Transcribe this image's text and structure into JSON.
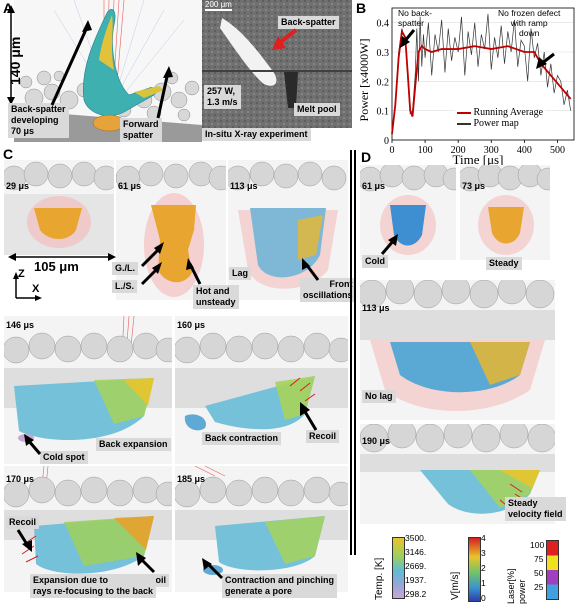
{
  "panel_a": {
    "label": "A",
    "scale_label": "140 μm",
    "xray_scale": "200 μm",
    "back_spatter": "Back-spatter",
    "params": "257 W,\n1.3 m/s",
    "melt_pool": "Melt pool",
    "back_spatter_developing": "Back-spatter\ndeveloping\n70 μs",
    "forward_spatter": "Forward\nspatter",
    "xray_caption": "In-situ X-ray experiment"
  },
  "panel_b": {
    "label": "B",
    "ylabel": "Power [x4000W]",
    "xlabel": "Time [μs]",
    "annotation_left": "No back-\nspatter",
    "annotation_right": "No frozen defect\nwith ramp\ndown",
    "legend_running": "Running Average",
    "legend_power": "Power map"
  },
  "panel_c": {
    "label": "C",
    "times": [
      "29 μs",
      "61 μs",
      "113 μs",
      "146 μs",
      "160 μs",
      "170 μs",
      "185 μs"
    ],
    "width_label": "105 μm",
    "gl": "G./L.",
    "ls": "L./S.",
    "hot_unsteady": "Hot and\nunsteady",
    "lag": "Lag",
    "front_osc": "Front\noscillations",
    "cold_spot": "Cold spot",
    "back_expansion": "Back expansion",
    "back_contraction": "Back contraction",
    "recoil": "Recoil",
    "expansion_text": "Expansion due to\nrays re-focusing to the back",
    "contraction_text": "Contraction and pinching\ngenerate a pore",
    "axis_z": "Z",
    "axis_x": "X"
  },
  "panel_d": {
    "label": "D",
    "times": [
      "61 μs",
      "73 μs",
      "113 μs",
      "190 μs"
    ],
    "cold": "Cold",
    "steady": "Steady",
    "no_lag": "No lag",
    "steady_field": "Steady\nvelocity field"
  },
  "colorbars": {
    "temp": {
      "title": "Temp. [K]",
      "ticks": [
        "3500.",
        "3146.",
        "2669.",
        "1937.",
        "298.2"
      ]
    },
    "vel": {
      "title": "V[m/s]",
      "ticks": [
        "4",
        "3",
        "2",
        "1",
        "0"
      ]
    },
    "laser": {
      "title": "Laser[%]\npower",
      "ticks": [
        "100",
        "75",
        "50",
        "25"
      ]
    }
  },
  "chart_data": {
    "type": "line",
    "title": "",
    "xlabel": "Time [μs]",
    "ylabel": "Power [x4000W]",
    "xlim": [
      0,
      550
    ],
    "ylim": [
      0,
      0.45
    ],
    "xticks": [
      0,
      100,
      200,
      300,
      400,
      500
    ],
    "yticks": [
      0,
      0.1,
      0.2,
      0.3,
      0.4
    ],
    "legend_position": "bottom-right",
    "series": [
      {
        "name": "Running Average",
        "color": "#c00000",
        "x": [
          0,
          10,
          20,
          30,
          40,
          48,
          55,
          62,
          70,
          80,
          90,
          100,
          120,
          150,
          200,
          250,
          300,
          350,
          400,
          430,
          450,
          480,
          510,
          540
        ],
        "y": [
          0.02,
          0.12,
          0.28,
          0.37,
          0.35,
          0.22,
          0.1,
          0.08,
          0.18,
          0.3,
          0.32,
          0.31,
          0.3,
          0.31,
          0.31,
          0.32,
          0.31,
          0.32,
          0.3,
          0.3,
          0.26,
          0.22,
          0.18,
          0.14
        ]
      },
      {
        "name": "Power map",
        "color": "#333333",
        "x": [
          0,
          10,
          20,
          30,
          40,
          48,
          55,
          62,
          70,
          75,
          80,
          85,
          90,
          95,
          100,
          110,
          120,
          130,
          140,
          150,
          160,
          170,
          180,
          190,
          200,
          210,
          220,
          230,
          240,
          250,
          260,
          270,
          280,
          290,
          300,
          310,
          320,
          330,
          340,
          350,
          360,
          370,
          380,
          390,
          400,
          410,
          420,
          430,
          440,
          450,
          460,
          470,
          480,
          490,
          500,
          510,
          520,
          530,
          540
        ],
        "y": [
          0.02,
          0.13,
          0.3,
          0.38,
          0.34,
          0.2,
          0.09,
          0.1,
          0.22,
          0.38,
          0.2,
          0.42,
          0.25,
          0.36,
          0.28,
          0.4,
          0.22,
          0.36,
          0.3,
          0.41,
          0.23,
          0.38,
          0.27,
          0.35,
          0.3,
          0.42,
          0.22,
          0.37,
          0.29,
          0.4,
          0.25,
          0.36,
          0.31,
          0.43,
          0.24,
          0.35,
          0.28,
          0.39,
          0.26,
          0.37,
          0.3,
          0.41,
          0.25,
          0.34,
          0.32,
          0.2,
          0.38,
          0.28,
          0.33,
          0.22,
          0.3,
          0.18,
          0.26,
          0.16,
          0.22,
          0.2,
          0.12,
          0.17,
          0.1
        ]
      }
    ]
  }
}
